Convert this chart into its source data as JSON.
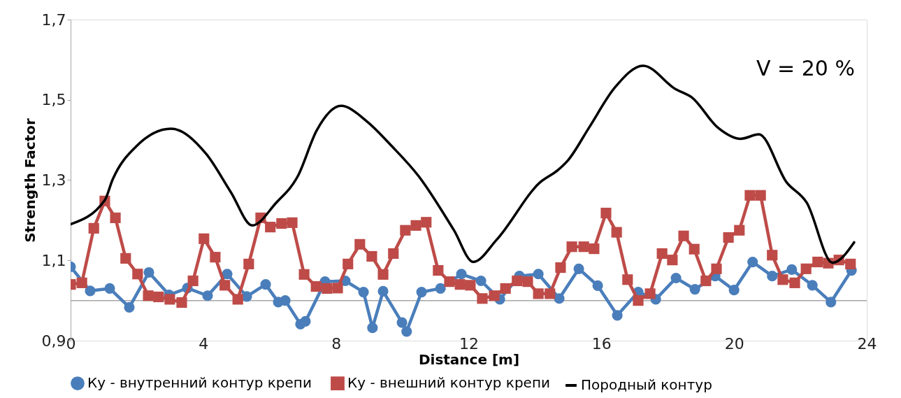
{
  "chart_data": {
    "type": "line",
    "xlabel": "Distance [m]",
    "ylabel": "Strength Factor",
    "xlim": [
      0,
      24
    ],
    "xticks": [
      0,
      4,
      8,
      12,
      16,
      20,
      24
    ],
    "ylim": [
      0.9,
      1.7
    ],
    "yticks": [
      {
        "value": 0.9,
        "label": "0,9"
      },
      {
        "value": 1.1,
        "label": "1,1"
      },
      {
        "value": 1.3,
        "label": "1,3"
      },
      {
        "value": 1.5,
        "label": "1,5"
      },
      {
        "value": 1.7,
        "label": "1,7"
      }
    ],
    "grid": false,
    "legend": "bottom",
    "line_style": "solid",
    "annotations": [
      "V = 20 %"
    ],
    "ref_lines": [
      {
        "axis": "y",
        "value": 1.0,
        "color": "#a6a6a6"
      }
    ],
    "series": [
      {
        "name": "Ку - внутренний  контур крепи",
        "color": "#4a7ebb",
        "marker": "circle",
        "x": [
          0,
          0.59,
          1.18,
          1.77,
          2.36,
          2.97,
          3.52,
          4.13,
          4.72,
          5.31,
          5.88,
          6.26,
          6.47,
          6.93,
          7.08,
          7.67,
          8.28,
          8.83,
          9.1,
          9.42,
          9.99,
          10.13,
          10.58,
          11.15,
          11.78,
          12.37,
          12.94,
          13.53,
          14.1,
          14.73,
          15.32,
          15.89,
          16.48,
          17.11,
          17.64,
          18.25,
          18.82,
          19.43,
          20.0,
          20.56,
          21.15,
          21.74,
          22.36,
          22.92,
          23.54
        ],
        "values": [
          1.084,
          1.024,
          1.03,
          0.983,
          1.07,
          1.014,
          1.031,
          1.012,
          1.066,
          1.01,
          1.04,
          0.996,
          1.0,
          0.941,
          0.948,
          1.047,
          1.049,
          1.021,
          0.932,
          1.023,
          0.945,
          0.923,
          1.021,
          1.03,
          1.066,
          1.049,
          1.003,
          1.061,
          1.066,
          1.005,
          1.079,
          1.037,
          0.963,
          1.021,
          1.003,
          1.056,
          1.028,
          1.061,
          1.026,
          1.096,
          1.061,
          1.077,
          1.038,
          0.996,
          1.075
        ]
      },
      {
        "name": "Ку - внешний контур крепи",
        "color": "#be4b48",
        "marker": "square",
        "x": [
          0,
          0.34,
          0.7,
          1.03,
          1.35,
          1.66,
          2.02,
          2.34,
          2.65,
          2.99,
          3.35,
          3.69,
          4.02,
          4.36,
          4.65,
          5.04,
          5.37,
          5.73,
          6.02,
          6.36,
          6.68,
          7.04,
          7.4,
          7.73,
          8.05,
          8.36,
          8.72,
          9.08,
          9.42,
          9.73,
          10.09,
          10.41,
          10.72,
          11.08,
          11.42,
          11.74,
          12.05,
          12.41,
          12.77,
          13.11,
          13.46,
          13.78,
          14.1,
          14.45,
          14.77,
          15.11,
          15.47,
          15.78,
          16.14,
          16.46,
          16.79,
          17.11,
          17.47,
          17.83,
          18.14,
          18.48,
          18.8,
          19.15,
          19.47,
          19.83,
          20.16,
          20.48,
          20.8,
          21.15,
          21.47,
          21.83,
          22.17,
          22.52,
          22.84,
          23.16,
          23.51
        ],
        "values": [
          1.04,
          1.044,
          1.18,
          1.248,
          1.206,
          1.105,
          1.066,
          1.012,
          1.009,
          1.003,
          0.995,
          1.049,
          1.154,
          1.108,
          1.038,
          1.003,
          1.091,
          1.206,
          1.183,
          1.192,
          1.194,
          1.065,
          1.035,
          1.03,
          1.031,
          1.091,
          1.14,
          1.11,
          1.065,
          1.117,
          1.175,
          1.187,
          1.195,
          1.075,
          1.047,
          1.04,
          1.038,
          1.005,
          1.012,
          1.03,
          1.049,
          1.047,
          1.017,
          1.017,
          1.082,
          1.134,
          1.134,
          1.129,
          1.218,
          1.17,
          1.052,
          1.0,
          1.017,
          1.117,
          1.101,
          1.161,
          1.128,
          1.049,
          1.079,
          1.157,
          1.175,
          1.262,
          1.262,
          1.113,
          1.052,
          1.044,
          1.079,
          1.096,
          1.093,
          1.101,
          1.091
        ]
      },
      {
        "name": "Породный контур",
        "color": "#000000",
        "marker": "none",
        "x": [
          0,
          1.03,
          1.26,
          1.98,
          3.03,
          4.09,
          4.83,
          5.48,
          6.19,
          6.85,
          7.42,
          8.15,
          8.95,
          9.69,
          10.49,
          11.55,
          12.14,
          12.85,
          14.16,
          14.69,
          15.0,
          15.63,
          16.41,
          17.26,
          18.23,
          18.73,
          19.51,
          20.2,
          20.75,
          21.58,
          22.19,
          22.97,
          23.62
        ],
        "values": [
          1.19,
          1.25,
          1.3,
          1.384,
          1.428,
          1.365,
          1.27,
          1.187,
          1.243,
          1.31,
          1.424,
          1.485,
          1.445,
          1.384,
          1.31,
          1.176,
          1.096,
          1.152,
          1.295,
          1.325,
          1.35,
          1.431,
          1.531,
          1.585,
          1.527,
          1.506,
          1.431,
          1.403,
          1.414,
          1.295,
          1.244,
          1.094,
          1.145
        ]
      }
    ]
  }
}
